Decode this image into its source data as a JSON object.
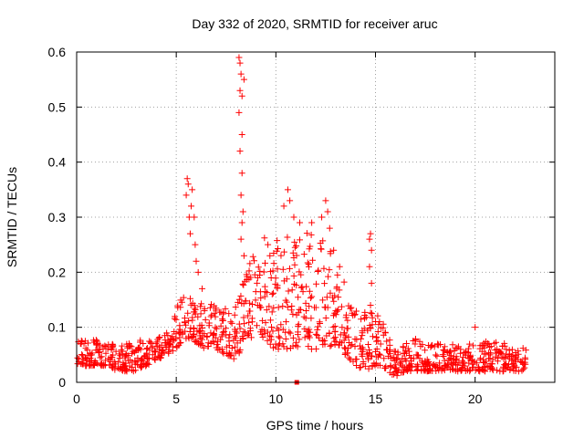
{
  "chart_data": {
    "type": "scatter",
    "title": "Day 332 of 2020, SRMTID for receiver aruc",
    "xlabel": "GPS time / hours",
    "ylabel": "SRMTID / TECUs",
    "xlim": [
      0,
      24
    ],
    "ylim": [
      0,
      0.6
    ],
    "x_ticks": [
      0,
      5,
      10,
      15,
      20
    ],
    "x_tick_labels": [
      "0",
      "5",
      "10",
      "15",
      "20"
    ],
    "y_ticks": [
      0,
      0.1,
      0.2,
      0.3,
      0.4,
      0.5,
      0.6
    ],
    "y_tick_labels": [
      "0",
      "0.1",
      "0.2",
      "0.3",
      "0.4",
      "0.5",
      "0.6"
    ],
    "grid": true,
    "marker": "plus",
    "color": "#ff0000",
    "series": [
      {
        "name": "SRMTID",
        "envelope": [
          [
            0.0,
            0.03,
            0.08
          ],
          [
            0.5,
            0.03,
            0.08
          ],
          [
            1.0,
            0.03,
            0.08
          ],
          [
            1.5,
            0.03,
            0.07
          ],
          [
            2.0,
            0.02,
            0.07
          ],
          [
            2.5,
            0.02,
            0.07
          ],
          [
            3.0,
            0.02,
            0.08
          ],
          [
            3.5,
            0.03,
            0.08
          ],
          [
            4.0,
            0.04,
            0.08
          ],
          [
            4.5,
            0.05,
            0.09
          ],
          [
            5.0,
            0.06,
            0.15
          ],
          [
            5.5,
            0.08,
            0.16
          ],
          [
            6.0,
            0.07,
            0.15
          ],
          [
            6.5,
            0.06,
            0.15
          ],
          [
            7.0,
            0.06,
            0.14
          ],
          [
            7.5,
            0.05,
            0.14
          ],
          [
            8.0,
            0.04,
            0.14
          ],
          [
            8.5,
            0.08,
            0.2
          ],
          [
            9.0,
            0.08,
            0.26
          ],
          [
            9.5,
            0.07,
            0.28
          ],
          [
            10.0,
            0.06,
            0.27
          ],
          [
            10.5,
            0.06,
            0.27
          ],
          [
            11.0,
            0.06,
            0.26
          ],
          [
            11.5,
            0.06,
            0.27
          ],
          [
            12.0,
            0.06,
            0.28
          ],
          [
            12.5,
            0.07,
            0.26
          ],
          [
            13.0,
            0.06,
            0.22
          ],
          [
            13.5,
            0.05,
            0.18
          ],
          [
            14.0,
            0.03,
            0.13
          ],
          [
            14.5,
            0.02,
            0.13
          ],
          [
            15.0,
            0.03,
            0.13
          ],
          [
            15.5,
            0.02,
            0.1
          ],
          [
            16.0,
            0.01,
            0.06
          ],
          [
            16.5,
            0.02,
            0.07
          ],
          [
            17.0,
            0.02,
            0.08
          ],
          [
            17.5,
            0.02,
            0.07
          ],
          [
            18.0,
            0.02,
            0.07
          ],
          [
            18.5,
            0.02,
            0.07
          ],
          [
            19.0,
            0.02,
            0.07
          ],
          [
            19.5,
            0.02,
            0.07
          ],
          [
            20.0,
            0.02,
            0.07
          ],
          [
            20.5,
            0.02,
            0.08
          ],
          [
            21.0,
            0.02,
            0.08
          ],
          [
            21.5,
            0.02,
            0.07
          ],
          [
            22.0,
            0.02,
            0.07
          ],
          [
            22.6,
            0.02,
            0.06
          ]
        ],
        "points": [
          [
            5.5,
            0.34
          ],
          [
            5.55,
            0.37
          ],
          [
            5.6,
            0.36
          ],
          [
            5.65,
            0.3
          ],
          [
            5.7,
            0.27
          ],
          [
            5.75,
            0.32
          ],
          [
            5.8,
            0.35
          ],
          [
            5.9,
            0.3
          ],
          [
            5.95,
            0.25
          ],
          [
            6.0,
            0.22
          ],
          [
            6.1,
            0.2
          ],
          [
            6.3,
            0.17
          ],
          [
            8.15,
            0.59
          ],
          [
            8.2,
            0.58
          ],
          [
            8.25,
            0.56
          ],
          [
            8.2,
            0.53
          ],
          [
            8.15,
            0.49
          ],
          [
            8.3,
            0.45
          ],
          [
            8.2,
            0.42
          ],
          [
            8.3,
            0.38
          ],
          [
            8.25,
            0.34
          ],
          [
            8.35,
            0.31
          ],
          [
            8.3,
            0.29
          ],
          [
            8.25,
            0.26
          ],
          [
            8.4,
            0.23
          ],
          [
            8.4,
            0.55
          ],
          [
            8.3,
            0.52
          ],
          [
            9.6,
            0.25
          ],
          [
            9.7,
            0.23
          ],
          [
            10.4,
            0.32
          ],
          [
            10.6,
            0.35
          ],
          [
            10.7,
            0.33
          ],
          [
            10.9,
            0.3
          ],
          [
            11.2,
            0.29
          ],
          [
            11.8,
            0.29
          ],
          [
            12.3,
            0.3
          ],
          [
            12.5,
            0.33
          ],
          [
            12.6,
            0.31
          ],
          [
            12.7,
            0.28
          ],
          [
            12.9,
            0.24
          ],
          [
            13.2,
            0.21
          ],
          [
            14.7,
            0.26
          ],
          [
            14.75,
            0.27
          ],
          [
            14.8,
            0.24
          ],
          [
            14.7,
            0.21
          ],
          [
            14.8,
            0.18
          ],
          [
            14.75,
            0.14
          ],
          [
            15.5,
            0.09
          ],
          [
            15.2,
            0.11
          ],
          [
            20.0,
            0.1
          ]
        ],
        "squares": [
          [
            11.05,
            0.0
          ]
        ]
      }
    ]
  }
}
